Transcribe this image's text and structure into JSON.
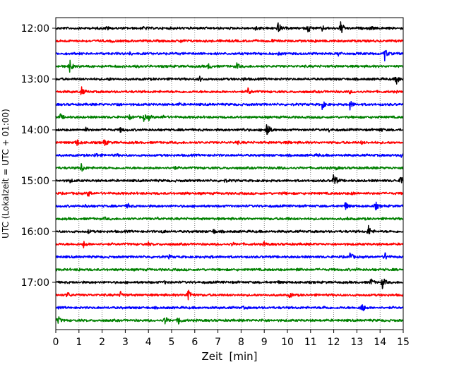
{
  "chart_data": {
    "type": "line",
    "title": "",
    "xlabel": "Zeit  [min]",
    "ylabel": "UTC (Lokalzeit = UTC + 01:00)",
    "xlim": [
      0,
      15
    ],
    "x_ticks": [
      0,
      1,
      2,
      3,
      4,
      5,
      6,
      7,
      8,
      9,
      10,
      11,
      12,
      13,
      14,
      15
    ],
    "x_tick_labels": [
      "0",
      "1",
      "2",
      "3",
      "4",
      "5",
      "6",
      "7",
      "8",
      "9",
      "10",
      "11",
      "12",
      "13",
      "14",
      "15"
    ],
    "y_tick_labels": [
      "12:00",
      "13:00",
      "14:00",
      "15:00",
      "16:00",
      "17:00"
    ],
    "y_tick_rows": [
      0,
      4,
      8,
      12,
      16,
      20
    ],
    "grid": "vertical dotted",
    "legend": "none",
    "colors": [
      "#000000",
      "#ff0000",
      "#0000ff",
      "#008000"
    ],
    "series": [
      {
        "start": "12:00",
        "events": [
          [
            2.2,
            0.6
          ],
          [
            3.8,
            0.5
          ],
          [
            8.6,
            0.8
          ],
          [
            9.6,
            2.0
          ],
          [
            10.9,
            1.5
          ],
          [
            11.5,
            0.8
          ],
          [
            12.3,
            2.5
          ],
          [
            13.6,
            0.5
          ]
        ]
      },
      {
        "start": "12:15",
        "events": [
          [
            2.4,
            0.4
          ],
          [
            5.4,
            0.4
          ],
          [
            9.3,
            0.5
          ],
          [
            11.2,
            0.3
          ]
        ]
      },
      {
        "start": "12:30",
        "events": [
          [
            3.2,
            0.3
          ],
          [
            9.6,
            0.3
          ],
          [
            12.2,
            0.6
          ],
          [
            14.2,
            2.0
          ]
        ]
      },
      {
        "start": "12:45",
        "events": [
          [
            0.6,
            2.0
          ],
          [
            3.4,
            0.4
          ],
          [
            6.6,
            0.9
          ],
          [
            7.8,
            1.0
          ]
        ]
      },
      {
        "start": "13:00",
        "events": [
          [
            2.3,
            0.3
          ],
          [
            6.2,
            0.9
          ],
          [
            8.1,
            0.4
          ],
          [
            14.7,
            2.0
          ]
        ]
      },
      {
        "start": "13:15",
        "events": [
          [
            1.1,
            1.5
          ],
          [
            8.3,
            1.2
          ],
          [
            12.7,
            0.4
          ]
        ]
      },
      {
        "start": "13:30",
        "events": [
          [
            2.6,
            0.6
          ],
          [
            5.3,
            0.4
          ],
          [
            11.5,
            1.5
          ],
          [
            12.7,
            1.5
          ]
        ]
      },
      {
        "start": "13:45",
        "events": [
          [
            0.2,
            0.9
          ],
          [
            3.2,
            0.6
          ],
          [
            3.8,
            1.0
          ],
          [
            4.0,
            0.8
          ],
          [
            4.6,
            0.5
          ]
        ]
      },
      {
        "start": "14:00",
        "events": [
          [
            1.3,
            0.6
          ],
          [
            2.8,
            0.8
          ],
          [
            8.1,
            0.4
          ],
          [
            9.1,
            3.5
          ],
          [
            11.8,
            0.4
          ],
          [
            14.0,
            0.6
          ]
        ]
      },
      {
        "start": "14:15",
        "events": [
          [
            0.9,
            1.2
          ],
          [
            2.1,
            1.2
          ],
          [
            7.8,
            0.5
          ],
          [
            10.0,
            0.3
          ],
          [
            13.2,
            0.4
          ]
        ]
      },
      {
        "start": "14:30",
        "events": [
          [
            1.7,
            0.9
          ],
          [
            2.6,
            0.3
          ],
          [
            11.3,
            0.4
          ],
          [
            14.9,
            0.6
          ]
        ]
      },
      {
        "start": "14:45",
        "events": [
          [
            1.1,
            1.5
          ],
          [
            5.1,
            0.4
          ],
          [
            9.6,
            0.3
          ],
          [
            12.1,
            0.4
          ]
        ]
      },
      {
        "start": "15:00",
        "events": [
          [
            0.6,
            0.5
          ],
          [
            7.3,
            0.4
          ],
          [
            12.0,
            3.0
          ],
          [
            14.9,
            2.2
          ]
        ]
      },
      {
        "start": "15:15",
        "events": [
          [
            1.4,
            1.1
          ],
          [
            5.6,
            0.3
          ],
          [
            9.8,
            0.3
          ],
          [
            12.8,
            0.4
          ]
        ]
      },
      {
        "start": "15:30",
        "events": [
          [
            1.3,
            0.4
          ],
          [
            3.1,
            0.8
          ],
          [
            12.5,
            1.4
          ],
          [
            13.8,
            1.4
          ]
        ]
      },
      {
        "start": "15:45",
        "events": [
          [
            2.1,
            0.3
          ],
          [
            4.4,
            0.3
          ],
          [
            10.0,
            0.3
          ],
          [
            12.6,
            0.3
          ]
        ]
      },
      {
        "start": "16:00",
        "events": [
          [
            1.4,
            0.5
          ],
          [
            4.6,
            0.4
          ],
          [
            6.8,
            0.7
          ],
          [
            13.5,
            1.8
          ]
        ]
      },
      {
        "start": "16:15",
        "events": [
          [
            1.2,
            1.0
          ],
          [
            4.0,
            0.4
          ],
          [
            7.6,
            0.5
          ],
          [
            9.0,
            0.6
          ]
        ]
      },
      {
        "start": "16:30",
        "events": [
          [
            4.9,
            0.5
          ],
          [
            6.7,
            0.3
          ],
          [
            12.7,
            1.6
          ],
          [
            14.2,
            1.4
          ]
        ]
      },
      {
        "start": "16:45",
        "events": [
          [
            1.0,
            0.3
          ],
          [
            10.4,
            0.6
          ],
          [
            13.0,
            0.3
          ]
        ]
      },
      {
        "start": "17:00",
        "events": [
          [
            4.7,
            0.4
          ],
          [
            9.6,
            0.3
          ],
          [
            13.6,
            1.2
          ],
          [
            14.1,
            2.0
          ]
        ]
      },
      {
        "start": "17:15",
        "events": [
          [
            0.5,
            1.0
          ],
          [
            2.8,
            1.0
          ],
          [
            5.7,
            3.0
          ],
          [
            10.1,
            0.8
          ]
        ]
      },
      {
        "start": "17:30",
        "events": [
          [
            8.1,
            0.3
          ],
          [
            11.6,
            0.4
          ],
          [
            13.2,
            2.2
          ]
        ]
      },
      {
        "start": "17:45",
        "events": [
          [
            0.1,
            1.2
          ],
          [
            4.7,
            1.5
          ],
          [
            5.3,
            1.5
          ],
          [
            8.9,
            0.3
          ]
        ]
      }
    ]
  }
}
